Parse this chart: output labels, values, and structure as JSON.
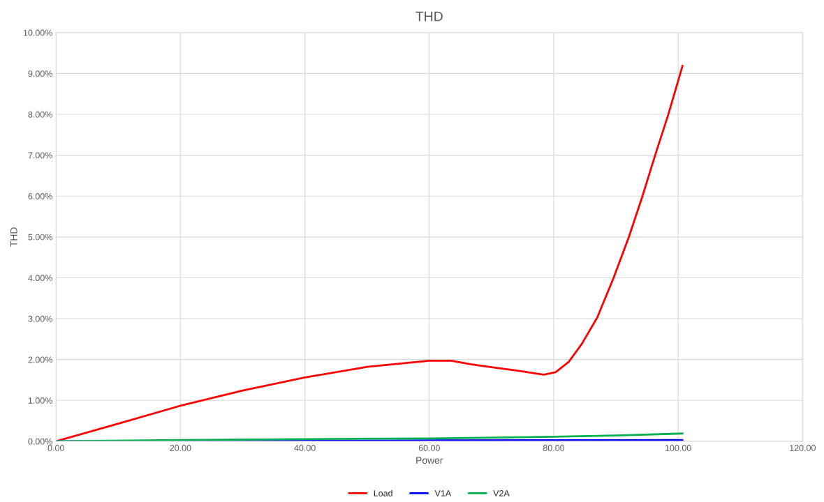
{
  "chart_data": {
    "type": "line",
    "title": "THD",
    "xlabel": "Power",
    "ylabel": "THD",
    "xlim": [
      0,
      120
    ],
    "xticks": [
      {
        "value": 0,
        "label": "0.00"
      },
      {
        "value": 20,
        "label": "20.00"
      },
      {
        "value": 40,
        "label": "40.00"
      },
      {
        "value": 60,
        "label": "60.00"
      },
      {
        "value": 80,
        "label": "80.00"
      },
      {
        "value": 100,
        "label": "100.00"
      },
      {
        "value": 120,
        "label": "120.00"
      }
    ],
    "ylim": [
      0,
      10
    ],
    "yticks": [
      {
        "value": 0,
        "label": "0.00%"
      },
      {
        "value": 1,
        "label": "1.00%"
      },
      {
        "value": 2,
        "label": "2.00%"
      },
      {
        "value": 3,
        "label": "3.00%"
      },
      {
        "value": 4,
        "label": "4.00%"
      },
      {
        "value": 5,
        "label": "5.00%"
      },
      {
        "value": 6,
        "label": "6.00%"
      },
      {
        "value": 7,
        "label": "7.00%"
      },
      {
        "value": 8,
        "label": "8.00%"
      },
      {
        "value": 9,
        "label": "9.00%"
      },
      {
        "value": 10,
        "label": "10.00%"
      }
    ],
    "grid": true,
    "legend": "bottom",
    "marker": "none",
    "line_style": "solid",
    "series": [
      {
        "name": "Load",
        "color": "#ff0000",
        "x": [
          0,
          10,
          20,
          30,
          40,
          50,
          60,
          63.5,
          66.8,
          71.0,
          73.6,
          78.4,
          80.3,
          82.4,
          84.5,
          87.0,
          89.6,
          92.1,
          94.2,
          96.3,
          98.4,
          100.7
        ],
        "values": [
          0,
          0.43,
          0.87,
          1.24,
          1.56,
          1.82,
          1.97,
          1.97,
          1.88,
          1.79,
          1.74,
          1.63,
          1.69,
          1.94,
          2.38,
          3.03,
          3.99,
          5.01,
          5.97,
          7.0,
          7.99,
          9.19
        ]
      },
      {
        "name": "V1A",
        "color": "#0000ff",
        "x": [
          0,
          40,
          60,
          80,
          100.7
        ],
        "values": [
          0,
          0.01,
          0.02,
          0.025,
          0.03
        ]
      },
      {
        "name": "V2A",
        "color": "#00b050",
        "x": [
          0,
          20,
          40,
          60,
          80,
          90,
          100.7
        ],
        "values": [
          0,
          0.03,
          0.05,
          0.07,
          0.11,
          0.14,
          0.19
        ]
      }
    ]
  }
}
